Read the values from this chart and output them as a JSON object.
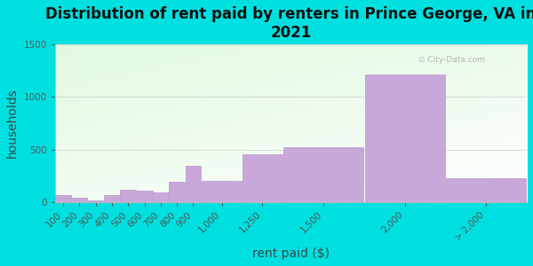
{
  "title": "Distribution of rent paid by renters in Prince George, VA in\n2021",
  "xlabel": "rent paid ($)",
  "ylabel": "households",
  "background_color": "#00e0e0",
  "bar_color": "#c8a8d8",
  "bar_edge_color": "#b898c8",
  "categories": [
    "100",
    "200",
    "300",
    "400",
    "500",
    "600",
    "700",
    "800",
    "900",
    "1,000",
    "1,250",
    "1,500",
    "2,000",
    "> 2,000"
  ],
  "values": [
    65,
    45,
    15,
    70,
    115,
    110,
    90,
    195,
    350,
    205,
    455,
    520,
    1210,
    225
  ],
  "bar_lefts": [
    100,
    200,
    300,
    400,
    500,
    600,
    700,
    800,
    900,
    1000,
    1250,
    1500,
    2000,
    2500
  ],
  "bar_widths": [
    100,
    100,
    100,
    100,
    100,
    100,
    100,
    100,
    100,
    250,
    250,
    500,
    500,
    500
  ],
  "xlim": [
    100,
    3000
  ],
  "ylim": [
    0,
    1500
  ],
  "yticks": [
    0,
    500,
    1000,
    1500
  ],
  "title_fontsize": 12,
  "label_fontsize": 10,
  "tick_fontsize": 7.5,
  "watermark": "City-Data.com"
}
